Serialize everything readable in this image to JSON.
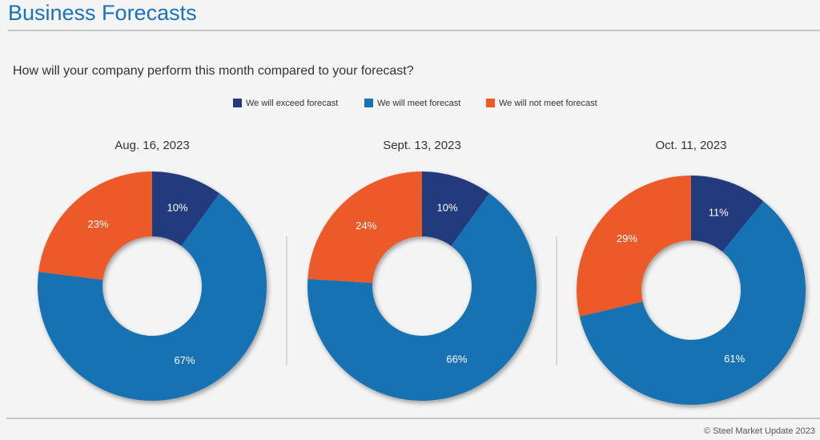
{
  "header": {
    "title": "Business Forecasts"
  },
  "question": "How will your company perform this month compared to your forecast?",
  "footer": "© Steel Market Update 2023",
  "chart_data": [
    {
      "type": "donut",
      "title": "Aug. 16, 2023",
      "categories": [
        "We will exceed forecast",
        "We will meet forecast",
        "We will not meet forecast"
      ],
      "values": [
        10,
        67,
        23
      ],
      "value_labels": [
        "10%",
        "67%",
        "23%"
      ],
      "colors": [
        "#243a7d",
        "#1672b3",
        "#ec5a2a"
      ]
    },
    {
      "type": "donut",
      "title": "Sept. 13, 2023",
      "categories": [
        "We will exceed forecast",
        "We will meet forecast",
        "We will not meet forecast"
      ],
      "values": [
        10,
        66,
        24
      ],
      "value_labels": [
        "10%",
        "66%",
        "24%"
      ],
      "colors": [
        "#243a7d",
        "#1672b3",
        "#ec5a2a"
      ]
    },
    {
      "type": "donut",
      "title": "Oct. 11, 2023",
      "categories": [
        "We will exceed forecast",
        "We will meet forecast",
        "We will not meet forecast"
      ],
      "values": [
        11,
        61,
        29
      ],
      "value_labels": [
        "11%",
        "61%",
        "29%"
      ],
      "colors": [
        "#243a7d",
        "#1672b3",
        "#ec5a2a"
      ]
    }
  ]
}
